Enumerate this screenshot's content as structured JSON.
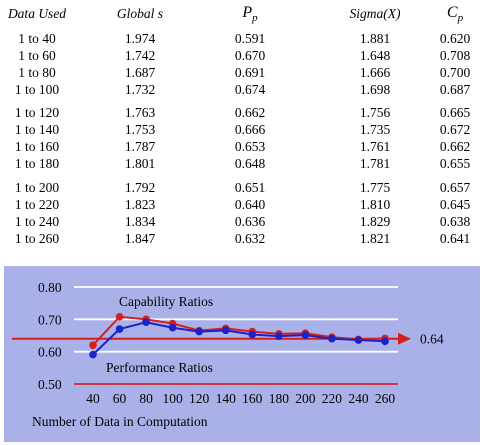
{
  "table": {
    "headers": [
      "Data Used",
      "Global s",
      "P",
      "p",
      "Sigma(X)",
      "C",
      "p"
    ],
    "rows": [
      [
        "1 to 40",
        "1.974",
        "0.591",
        "1.881",
        "0.620"
      ],
      [
        "1 to 60",
        "1.742",
        "0.670",
        "1.648",
        "0.708"
      ],
      [
        "1 to 80",
        "1.687",
        "0.691",
        "1.666",
        "0.700"
      ],
      [
        "1 to 100",
        "1.732",
        "0.674",
        "1.698",
        "0.687"
      ],
      [
        "1 to 120",
        "1.763",
        "0.662",
        "1.756",
        "0.665"
      ],
      [
        "1 to 140",
        "1.753",
        "0.666",
        "1.735",
        "0.672"
      ],
      [
        "1 to 160",
        "1.787",
        "0.653",
        "1.761",
        "0.662"
      ],
      [
        "1 to 180",
        "1.801",
        "0.648",
        "1.781",
        "0.655"
      ],
      [
        "1 to 200",
        "1.792",
        "0.651",
        "1.775",
        "0.657"
      ],
      [
        "1 to 220",
        "1.823",
        "0.640",
        "1.810",
        "0.645"
      ],
      [
        "1 to 240",
        "1.834",
        "0.636",
        "1.829",
        "0.638"
      ],
      [
        "1 to 260",
        "1.847",
        "0.632",
        "1.821",
        "0.641"
      ]
    ]
  },
  "chart_data": {
    "type": "line",
    "x": [
      40,
      60,
      80,
      100,
      120,
      140,
      160,
      180,
      200,
      220,
      240,
      260
    ],
    "xticks": [
      "40",
      "60",
      "80",
      "100",
      "120",
      "140",
      "160",
      "180",
      "200",
      "220",
      "240",
      "260"
    ],
    "yticks": [
      "0.80",
      "0.70",
      "0.60",
      "0.50"
    ],
    "ylim": [
      0.5,
      0.8
    ],
    "xlabel": "Number of Data in Computation",
    "ylabel": "",
    "grid": true,
    "series": [
      {
        "name": "Capability Ratios",
        "color": "#d41f1f",
        "values": [
          0.62,
          0.708,
          0.7,
          0.687,
          0.665,
          0.672,
          0.662,
          0.655,
          0.657,
          0.645,
          0.638,
          0.641
        ]
      },
      {
        "name": "Performance Ratios",
        "color": "#1a22c8",
        "values": [
          0.591,
          0.67,
          0.691,
          0.674,
          0.662,
          0.666,
          0.653,
          0.648,
          0.651,
          0.64,
          0.636,
          0.632
        ]
      }
    ],
    "reference_line": {
      "value": 0.64,
      "label": "0.64",
      "color": "#d41f1f"
    }
  }
}
